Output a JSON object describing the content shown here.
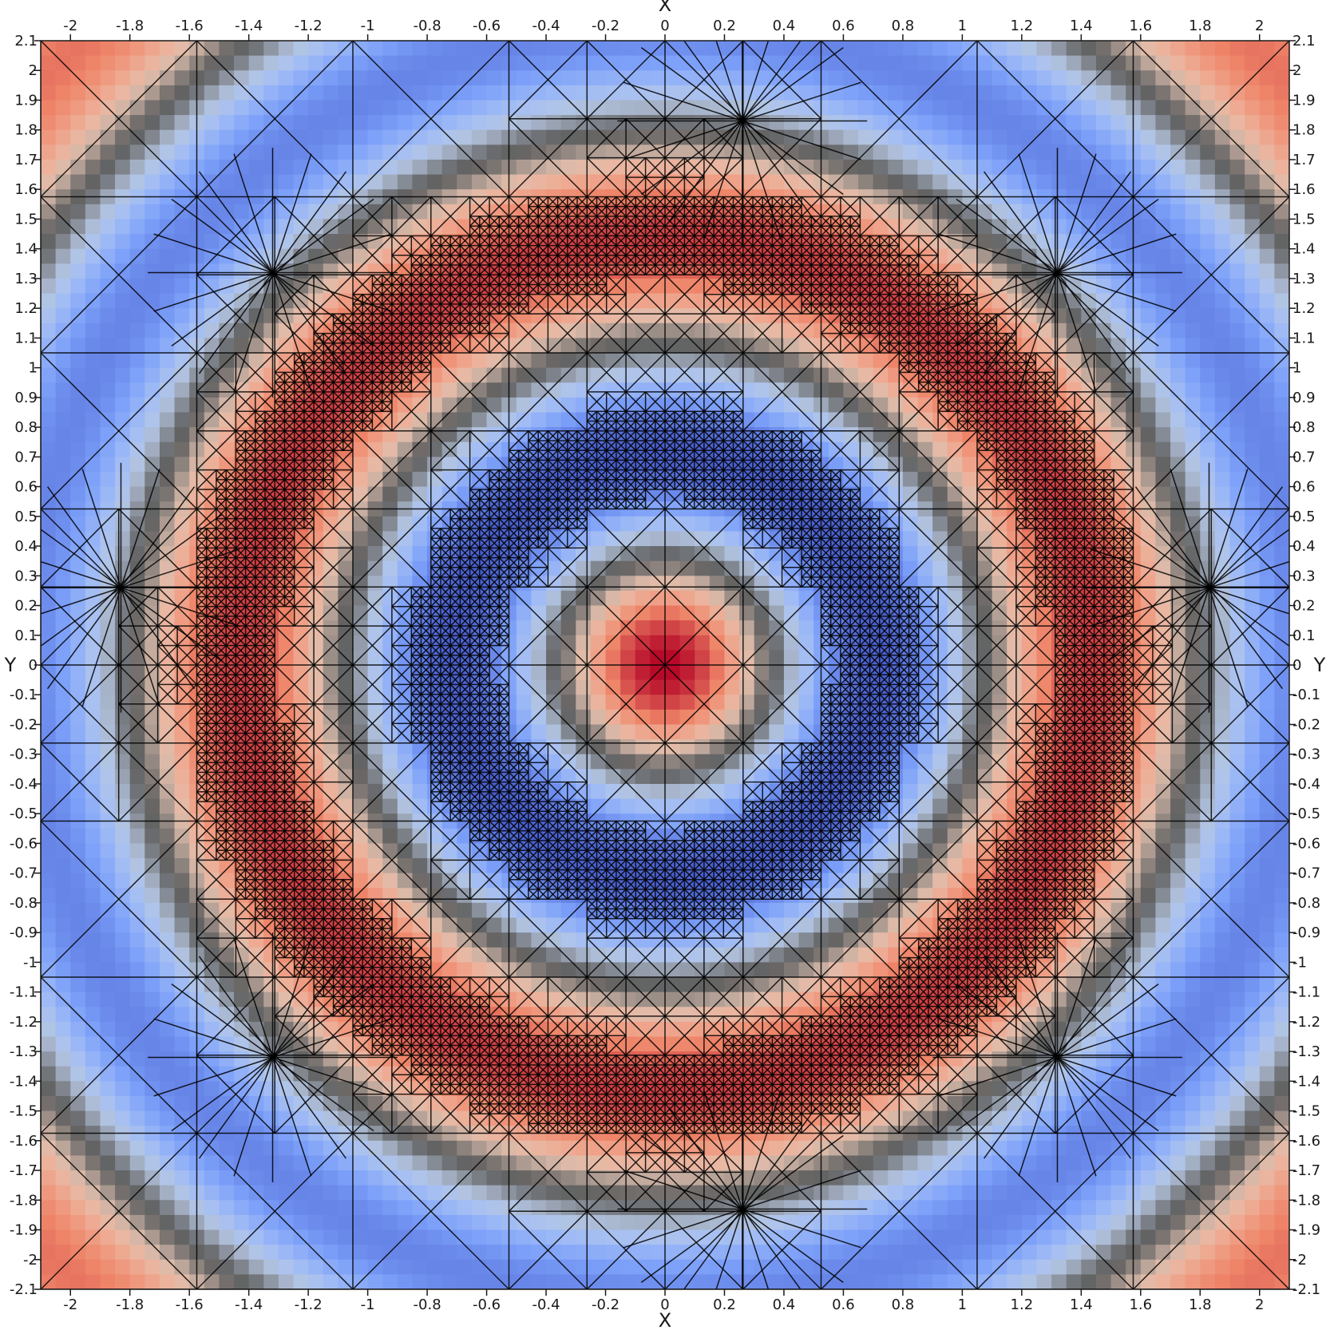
{
  "chart_data": {
    "type": "heatmap",
    "title": "",
    "xlabel": "X",
    "ylabel": "Y",
    "xlim": [
      -2.1,
      2.1
    ],
    "ylim": [
      -2.1,
      2.1
    ],
    "x_ticks": [
      "-2",
      "-1.8",
      "-1.6",
      "-1.4",
      "-1.2",
      "-1",
      "-0.8",
      "-0.6",
      "-0.4",
      "-0.2",
      "0",
      "0.2",
      "0.4",
      "0.6",
      "0.8",
      "1",
      "1.2",
      "1.4",
      "1.6",
      "1.8",
      "2"
    ],
    "y_ticks": [
      "2.1",
      "2",
      "1.9",
      "1.8",
      "1.7",
      "1.6",
      "1.5",
      "1.4",
      "1.3",
      "1.2",
      "1.1",
      "1",
      "0.9",
      "0.8",
      "0.7",
      "0.6",
      "0.5",
      "0.4",
      "0.3",
      "0.2",
      "0.1",
      "0",
      "-0.1",
      "-0.2",
      "-0.3",
      "-0.4",
      "-0.5",
      "-0.6",
      "-0.7",
      "-0.8",
      "-0.9",
      "-1",
      "-1.1",
      "-1.2",
      "-1.3",
      "-1.4",
      "-1.5",
      "-1.6",
      "-1.7",
      "-1.8",
      "-1.9",
      "-2",
      "-2.1"
    ],
    "field": {
      "description_shape": "radially symmetric rings",
      "peak_center": [
        0,
        0
      ],
      "ring_radii_high": [
        0,
        1.45
      ],
      "ring_radii_low": [
        0.72,
        2.3
      ],
      "colormap": [
        "#3b4cc0",
        "#7b9ff9",
        "#c0d4f5",
        "#dddddd",
        "#f2cbb7",
        "#ee8468",
        "#b40426"
      ]
    },
    "mesh": {
      "type": "adaptive triangular mesh",
      "refinement_bands": [
        0.72,
        1.45
      ],
      "fan_vertices": [
        [
          0.26,
          1.83
        ],
        [
          -1.32,
          1.32
        ],
        [
          1.32,
          1.32
        ],
        [
          -1.83,
          0.26
        ],
        [
          1.83,
          0.26
        ],
        [
          -1.32,
          -1.32
        ],
        [
          1.32,
          -1.32
        ],
        [
          0.26,
          -1.83
        ]
      ]
    },
    "grid": false,
    "legend": "none"
  },
  "colors": {
    "frame": "#1a1a1a",
    "mesh_line": "#000000",
    "background": "#ffffff"
  }
}
